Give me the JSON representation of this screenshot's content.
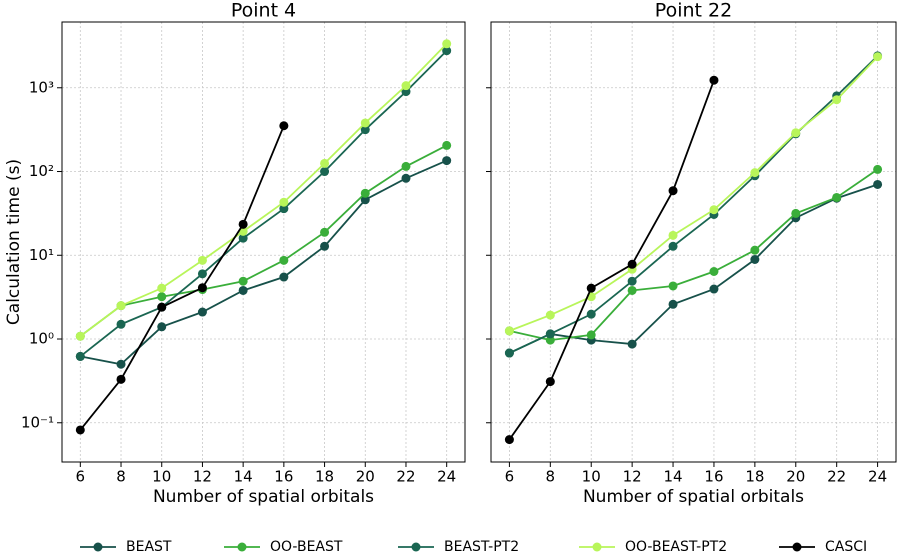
{
  "chart_data": [
    {
      "type": "line",
      "title": "Point 4",
      "xlabel": "Number of spatial orbitals",
      "ylabel": "Calculation time (s)",
      "log_y": true,
      "grid": true,
      "x": [
        6,
        8,
        10,
        12,
        14,
        16,
        18,
        20,
        22,
        24
      ],
      "xlim": [
        5.1,
        24.9
      ],
      "xticks": [
        6,
        8,
        10,
        12,
        14,
        16,
        18,
        20,
        22,
        24
      ],
      "ylim": [
        0.034,
        6100
      ],
      "yticks": [
        {
          "value": 0.1,
          "label": "10⁻¹"
        },
        {
          "value": 1,
          "label": "10⁰"
        },
        {
          "value": 10,
          "label": "10¹"
        },
        {
          "value": 100,
          "label": "10²"
        },
        {
          "value": 1000,
          "label": "10³"
        }
      ],
      "series": [
        {
          "name": "BEAST",
          "color": "#17514a",
          "values": [
            0.62,
            0.5,
            1.4,
            2.1,
            3.8,
            5.5,
            12.8,
            46,
            83,
            135
          ]
        },
        {
          "name": "OO-BEAST",
          "color": "#3aae3a",
          "values": [
            1.08,
            2.5,
            3.2,
            3.9,
            4.9,
            8.7,
            18.8,
            55,
            115,
            205
          ]
        },
        {
          "name": "BEAST-PT2",
          "color": "#1a6652",
          "values": [
            0.62,
            1.5,
            2.4,
            6,
            16,
            36,
            100,
            316,
            900,
            2770
          ]
        },
        {
          "name": "OO-BEAST-PT2",
          "color": "#b8f55a",
          "values": [
            1.08,
            2.5,
            4.05,
            8.7,
            19.3,
            43,
            125,
            380,
            1060,
            3350
          ]
        },
        {
          "name": "CASCI",
          "color": "#000000",
          "values": [
            0.082,
            0.33,
            2.4,
            4.1,
            23.4,
            352,
            null,
            null,
            null,
            null
          ]
        }
      ]
    },
    {
      "type": "line",
      "title": "Point 22",
      "xlabel": "Number of spatial orbitals",
      "log_y": true,
      "grid": true,
      "x": [
        6,
        8,
        10,
        12,
        14,
        16,
        18,
        20,
        22,
        24
      ],
      "xlim": [
        5.1,
        24.9
      ],
      "xticks": [
        6,
        8,
        10,
        12,
        14,
        16,
        18,
        20,
        22,
        24
      ],
      "ylim": [
        0.034,
        6100
      ],
      "series": [
        {
          "name": "BEAST",
          "color": "#17514a",
          "values": [
            0.68,
            1.15,
            0.97,
            0.87,
            2.6,
            3.95,
            8.9,
            28,
            48,
            70
          ]
        },
        {
          "name": "OO-BEAST",
          "color": "#3aae3a",
          "values": [
            1.25,
            0.97,
            1.12,
            3.8,
            4.3,
            6.4,
            11.5,
            31.6,
            49,
            106
          ]
        },
        {
          "name": "BEAST-PT2",
          "color": "#1a6652",
          "values": [
            0.68,
            1.15,
            1.98,
            4.9,
            12.8,
            30.7,
            89,
            282,
            800,
            2400
          ]
        },
        {
          "name": "OO-BEAST-PT2",
          "color": "#b8f55a",
          "values": [
            1.25,
            1.93,
            3.2,
            6.8,
            17.3,
            35,
            97,
            290,
            720,
            2350
          ]
        },
        {
          "name": "CASCI",
          "color": "#000000",
          "values": [
            0.063,
            0.31,
            4.05,
            7.8,
            59,
            1230,
            null,
            null,
            null,
            null
          ]
        }
      ]
    }
  ]
}
